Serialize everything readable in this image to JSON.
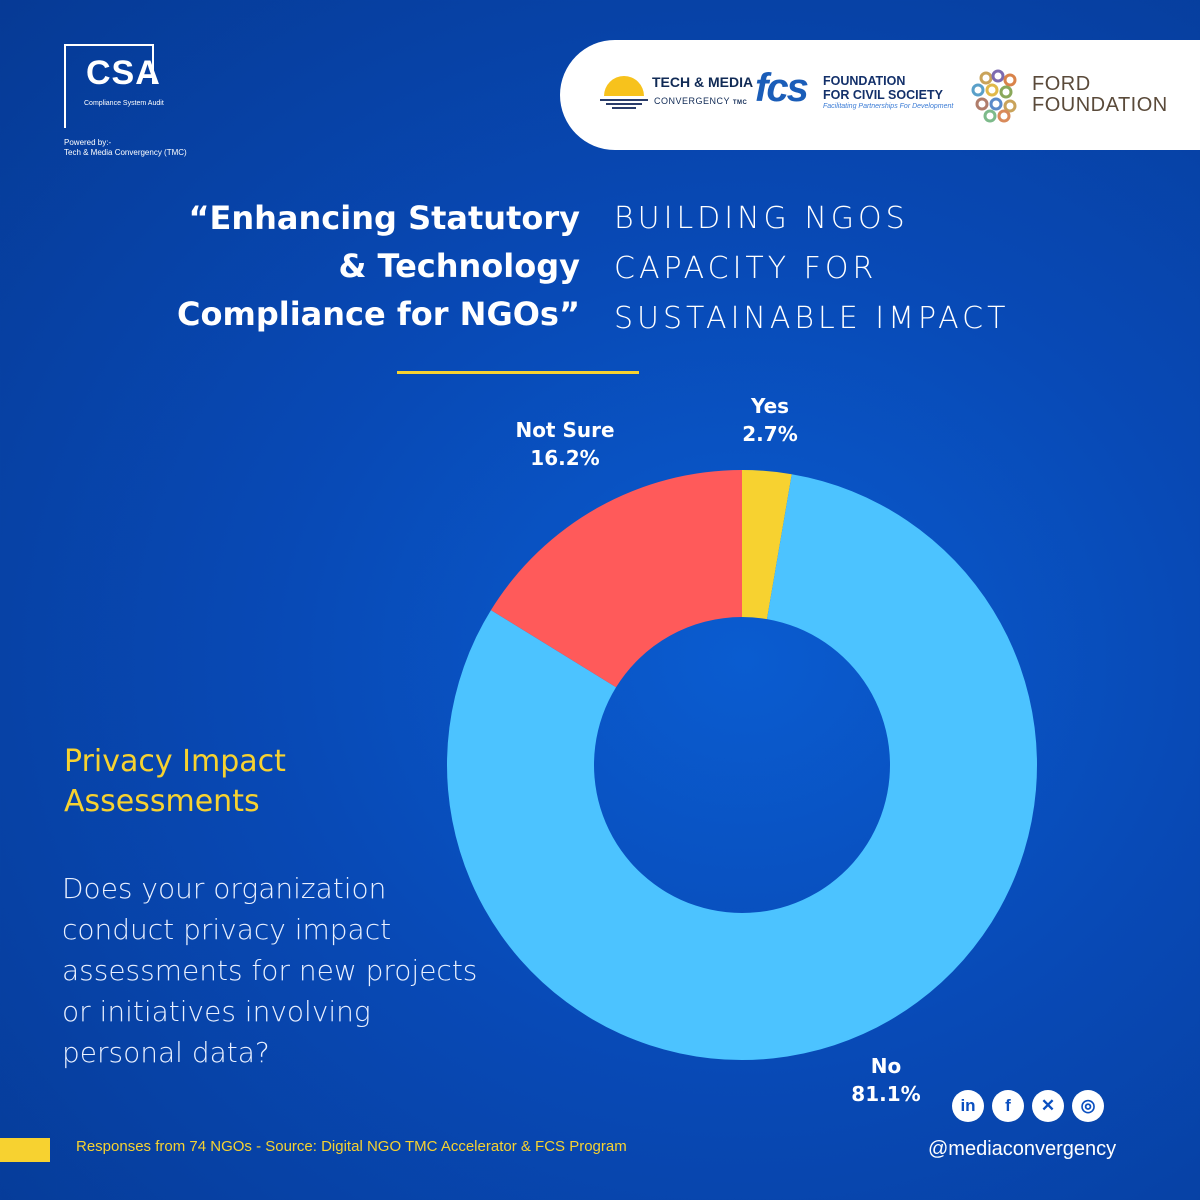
{
  "logo": {
    "name": "CSA",
    "subtitle": "Compliance System Audit",
    "powered_by": "Powered by:-",
    "powered_by_org": "Tech & Media Convergency (TMC)"
  },
  "partners": {
    "tmc_name": "TECH & MEDIA",
    "tmc_sub": "CONVERGENCY",
    "tmc_tag": "TMC",
    "fcs_mark": "fcs",
    "fcs_name_1": "FOUNDATION",
    "fcs_name_2": "FOR CIVIL SOCIETY",
    "fcs_tag": "Facilitating Partnerships For Development",
    "ford_name_1": "FORD",
    "ford_name_2": "FOUNDATION"
  },
  "headline": {
    "line1": "“Enhancing Statutory",
    "line2": "& Technology",
    "line3": "Compliance for NGOs”"
  },
  "subhead": {
    "line1": "BUILDING NGOS",
    "line2": "CAPACITY FOR",
    "line3": "SUSTAINABLE IMPACT"
  },
  "section_title": {
    "line1": "Privacy Impact",
    "line2": "Assessments"
  },
  "question": " Does your organization conduct privacy impact assessments for new projects or initiatives involving personal data?",
  "chart_data": {
    "type": "pie",
    "donut": true,
    "categories": [
      "Yes",
      "No",
      "Not Sure"
    ],
    "values": [
      2.7,
      81.1,
      16.2
    ],
    "value_labels": [
      "2.7%",
      "81.1%",
      "16.2%"
    ],
    "colors": [
      "#f7d230",
      "#4cc3ff",
      "#ff5a5a"
    ]
  },
  "footer": {
    "source": "Responses from 74 NGOs - Source: Digital NGO TMC Accelerator & FCS Program",
    "handle": "@mediaconvergency"
  },
  "social": [
    {
      "icon": "linkedin-icon",
      "glyph": "in"
    },
    {
      "icon": "facebook-icon",
      "glyph": "f"
    },
    {
      "icon": "x-icon",
      "glyph": "✕"
    },
    {
      "icon": "instagram-icon",
      "glyph": "◎"
    }
  ],
  "colors": {
    "accent": "#f7d230",
    "background": "#0849b5"
  }
}
